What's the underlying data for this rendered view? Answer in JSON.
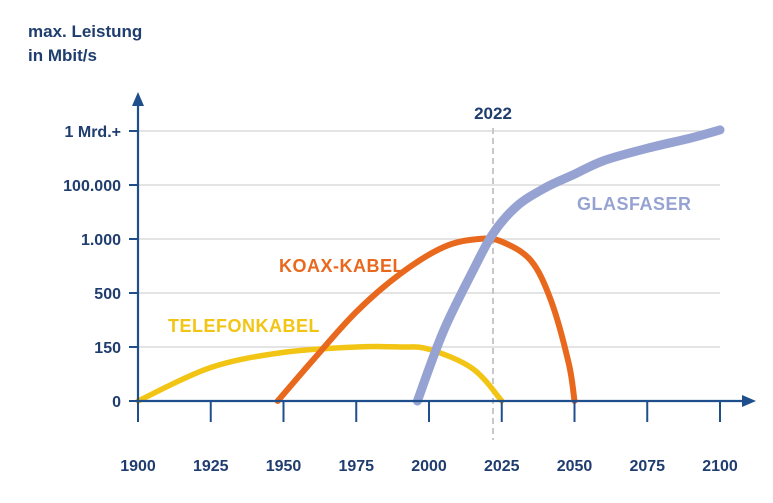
{
  "chart_data": {
    "type": "line",
    "ylabel_lines": [
      "max. Leistung",
      "in Mbit/s"
    ],
    "y_scale": "categorical",
    "y_tick_labels": [
      "0",
      "150",
      "500",
      "1.000",
      "100.000",
      "1 Mrd.+"
    ],
    "x_tick_labels": [
      "1900",
      "1925",
      "1950",
      "1975",
      "2000",
      "2025",
      "2050",
      "2075",
      "2100"
    ],
    "xlim": [
      1900,
      2100
    ],
    "grid": "horizontal",
    "annotations": [
      {
        "label": "2022",
        "x": 2022,
        "style": "dashed-vertical-line"
      }
    ],
    "series": [
      {
        "name": "TELEFONKABEL",
        "color": "#f2c515",
        "points": [
          [
            1900,
            0
          ],
          [
            1925,
            0.62
          ],
          [
            1950,
            0.9
          ],
          [
            1975,
            1.0
          ],
          [
            1990,
            1.0
          ],
          [
            2000,
            0.96
          ],
          [
            2015,
            0.6
          ],
          [
            2025,
            0
          ]
        ]
      },
      {
        "name": "KOAX-KABEL",
        "color": "#e8691e",
        "points": [
          [
            1948,
            0
          ],
          [
            1960,
            0.75
          ],
          [
            1975,
            1.65
          ],
          [
            1990,
            2.35
          ],
          [
            2005,
            2.85
          ],
          [
            2017,
            3.0
          ],
          [
            2025,
            2.95
          ],
          [
            2035,
            2.6
          ],
          [
            2042,
            1.85
          ],
          [
            2048,
            0.7
          ],
          [
            2050,
            0
          ]
        ]
      },
      {
        "name": "GLASFASER",
        "color": "#96a3d2",
        "points": [
          [
            1996,
            0
          ],
          [
            2005,
            1.3
          ],
          [
            2015,
            2.4
          ],
          [
            2022,
            3.1
          ],
          [
            2030,
            3.6
          ],
          [
            2040,
            3.95
          ],
          [
            2050,
            4.2
          ],
          [
            2060,
            4.45
          ],
          [
            2075,
            4.68
          ],
          [
            2090,
            4.87
          ],
          [
            2100,
            5.02
          ]
        ]
      }
    ]
  }
}
